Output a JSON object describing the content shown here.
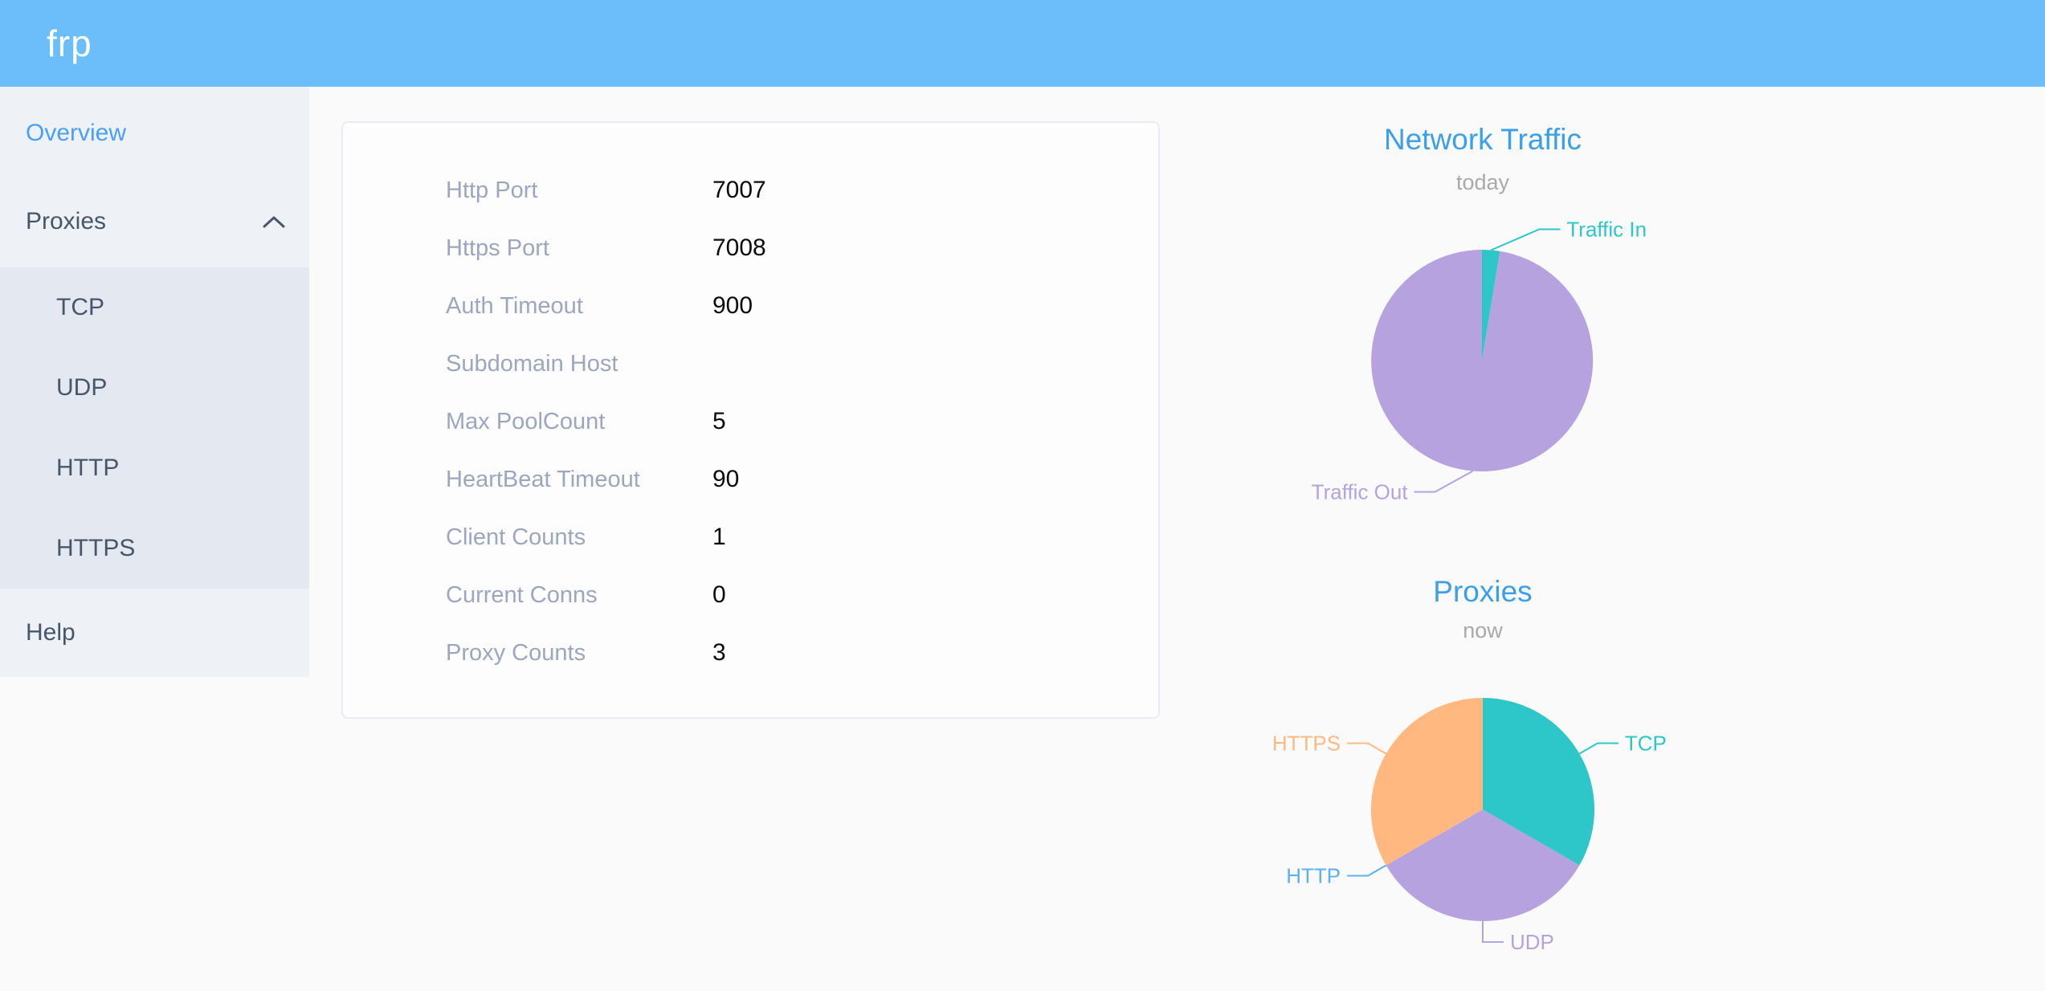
{
  "header": {
    "logo": "frp"
  },
  "sidebar": {
    "items": [
      {
        "label": "Overview",
        "active": true
      },
      {
        "label": "Proxies",
        "expanded": true,
        "children": [
          "TCP",
          "UDP",
          "HTTP",
          "HTTPS"
        ]
      },
      {
        "label": "Help",
        "active": false
      }
    ]
  },
  "server_info": {
    "rows": [
      {
        "label": "Http Port",
        "value": "7007"
      },
      {
        "label": "Https Port",
        "value": "7008"
      },
      {
        "label": "Auth Timeout",
        "value": "900"
      },
      {
        "label": "Subdomain Host",
        "value": ""
      },
      {
        "label": "Max PoolCount",
        "value": "5"
      },
      {
        "label": "HeartBeat Timeout",
        "value": "90"
      },
      {
        "label": "Client Counts",
        "value": "1"
      },
      {
        "label": "Current Conns",
        "value": "0"
      },
      {
        "label": "Proxy Counts",
        "value": "3"
      }
    ]
  },
  "chart_data": [
    {
      "type": "pie",
      "title": "Network Traffic",
      "subtitle": "today",
      "legend_position": "none",
      "labels_on": "leader-lines",
      "slices": [
        {
          "name": "Traffic In",
          "value": 2.6,
          "color": "#2ec7c9",
          "label_shift": 58
        },
        {
          "name": "Traffic Out",
          "value": 97.4,
          "color": "#b6a2de",
          "label_shift": -45
        }
      ]
    },
    {
      "type": "pie",
      "title": "Proxies",
      "subtitle": "now",
      "legend_position": "none",
      "labels_on": "leader-lines",
      "slices": [
        {
          "name": "TCP",
          "value": 1,
          "color": "#2ec7c9",
          "label_shift": 0
        },
        {
          "name": "UDP",
          "value": 1,
          "color": "#b6a2de",
          "label_shift": 0
        },
        {
          "name": "HTTP",
          "value": 0,
          "color": "#5ab1ef",
          "label_shift": 0
        },
        {
          "name": "HTTPS",
          "value": 1,
          "color": "#ffb980",
          "label_shift": 0
        }
      ]
    }
  ],
  "colors": {
    "header_bg": "#6cbefa",
    "sidebar_bg": "#eef1f6",
    "submenu_bg": "#e4e8f1",
    "menu_text": "#475669",
    "menu_active": "#4a9ff8",
    "chart_title": "#3b9fe9",
    "table_label": "#9ca7bd",
    "table_value": "#0c0c0c"
  }
}
